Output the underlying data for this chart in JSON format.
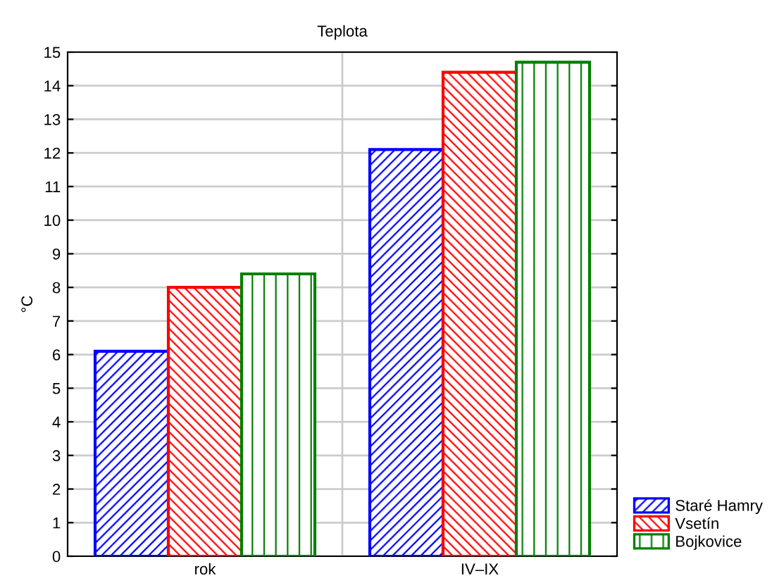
{
  "chart_data": {
    "type": "bar",
    "title": "Teplota",
    "ylabel": "°C",
    "categories": [
      "rok",
      "IV–IX"
    ],
    "series": [
      {
        "name": "Staré Hamry",
        "color": "#0000ff",
        "values": [
          6.1,
          12.1
        ]
      },
      {
        "name": "Vsetín",
        "color": "#ff0000",
        "values": [
          8.0,
          14.4
        ]
      },
      {
        "name": "Bojkovice",
        "color": "#008000",
        "values": [
          8.4,
          14.7
        ]
      }
    ],
    "ylim": [
      0,
      15
    ],
    "yticks": [
      0,
      1,
      2,
      3,
      4,
      5,
      6,
      7,
      8,
      9,
      10,
      11,
      12,
      13,
      14,
      15
    ],
    "grid": true,
    "legend": "bottom right"
  }
}
